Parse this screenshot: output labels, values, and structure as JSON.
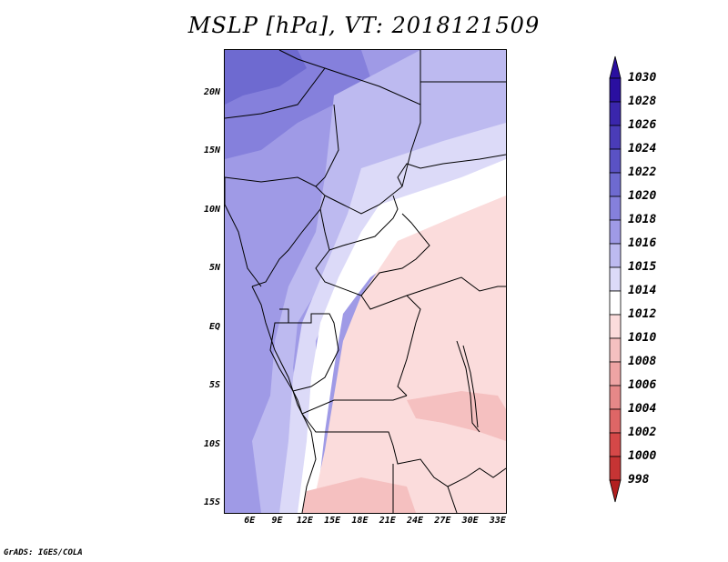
{
  "title": "MSLP [hPa], VT: 2018121509",
  "credit": "GrADS: IGES/COLA",
  "map": {
    "lat_labels": [
      "20N",
      "15N",
      "10N",
      "5N",
      "EQ",
      "5S",
      "10S",
      "15S"
    ],
    "lat_values": [
      20,
      15,
      10,
      5,
      0,
      -5,
      -10,
      -15
    ],
    "lon_labels": [
      "6E",
      "9E",
      "12E",
      "15E",
      "18E",
      "21E",
      "24E",
      "27E",
      "30E",
      "33E"
    ],
    "lon_values": [
      6,
      9,
      12,
      15,
      18,
      21,
      24,
      27,
      30,
      33
    ],
    "lat_range": [
      -15.7,
      23.8
    ],
    "lon_range": [
      3.2,
      33.8
    ]
  },
  "colorbar": {
    "labels": [
      "1030",
      "1028",
      "1026",
      "1024",
      "1022",
      "1020",
      "1018",
      "1016",
      "1015",
      "1014",
      "1012",
      "1010",
      "1008",
      "1006",
      "1004",
      "1002",
      "1000",
      "998"
    ],
    "colors": [
      "#2a0fa0",
      "#3a26ac",
      "#4a3cb8",
      "#5a52c4",
      "#6e6ad0",
      "#8580dc",
      "#9f9ae6",
      "#bdbaf0",
      "#dcdaf8",
      "#ffffff",
      "#fbdcdc",
      "#f5c0c0",
      "#eea4a4",
      "#e68888",
      "#de6666",
      "#d54848",
      "#c63434",
      "#b21f1f"
    ]
  }
}
